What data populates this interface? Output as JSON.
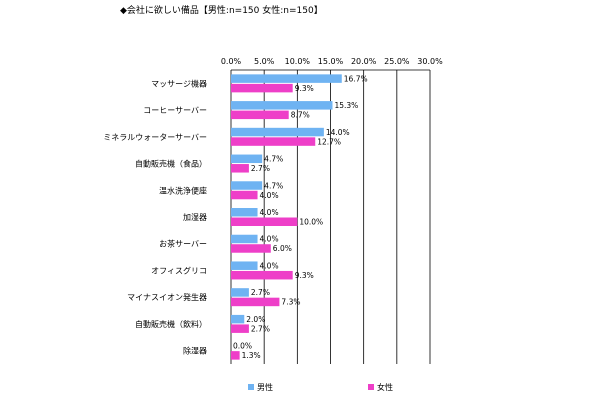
{
  "title": "◆会社に欲しい備品【男性:n=150 女性:n=150】",
  "colors": {
    "male": "#6fb3f2",
    "female": "#ee3fc8",
    "grid": "#000000"
  },
  "chart_data": {
    "type": "bar",
    "orientation": "horizontal",
    "title": "◆会社に欲しい備品【男性:n=150 女性:n=150】",
    "categories": [
      "マッサージ機器",
      "コーヒーサーバー",
      "ミネラルウォーターサーバー",
      "自動販売機（食品）",
      "温水洗浄便座",
      "加湿器",
      "お茶サーバー",
      "オフィスグリコ",
      "マイナスイオン発生器",
      "自動販売機（飲料）",
      "除湿器"
    ],
    "series": [
      {
        "name": "男性",
        "values": [
          16.7,
          15.3,
          14.0,
          4.7,
          4.7,
          4.0,
          4.0,
          4.0,
          2.7,
          2.0,
          0.0
        ]
      },
      {
        "name": "女性",
        "values": [
          9.3,
          8.7,
          12.7,
          2.7,
          4.0,
          10.0,
          6.0,
          9.3,
          7.3,
          2.7,
          1.3
        ]
      }
    ],
    "xlim": [
      0,
      30
    ],
    "xticks": [
      "0.0%",
      "5.0%",
      "10.0%",
      "15.0%",
      "20.0%",
      "25.0%",
      "30.0%"
    ],
    "value_suffix": "%",
    "grid": true,
    "legend_position": "bottom"
  }
}
